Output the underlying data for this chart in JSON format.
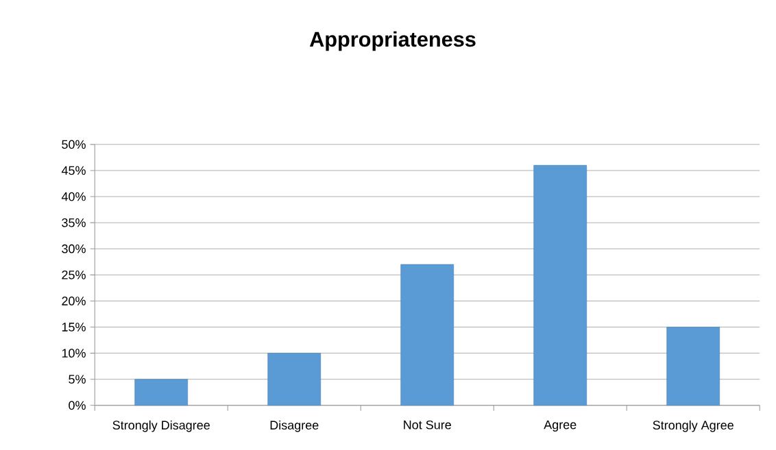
{
  "chart_data": {
    "type": "bar",
    "title": "Appropriateness",
    "categories": [
      "Strongly Disagree",
      "Disagree",
      "Not Sure",
      "Agree",
      "Strongly Agree"
    ],
    "values": [
      5,
      10,
      27,
      46,
      15
    ],
    "color": "#5b9bd5",
    "ylim": [
      0,
      50
    ],
    "yticks": [
      {
        "value": 0,
        "label": "0%"
      },
      {
        "value": 5,
        "label": "5%"
      },
      {
        "value": 10,
        "label": "10%"
      },
      {
        "value": 15,
        "label": "15%"
      },
      {
        "value": 20,
        "label": "20%"
      },
      {
        "value": 25,
        "label": "25%"
      },
      {
        "value": 30,
        "label": "30%"
      },
      {
        "value": 35,
        "label": "35%"
      },
      {
        "value": 40,
        "label": "40%"
      },
      {
        "value": 45,
        "label": "45%"
      },
      {
        "value": 50,
        "label": "50%"
      }
    ],
    "grid": true
  }
}
